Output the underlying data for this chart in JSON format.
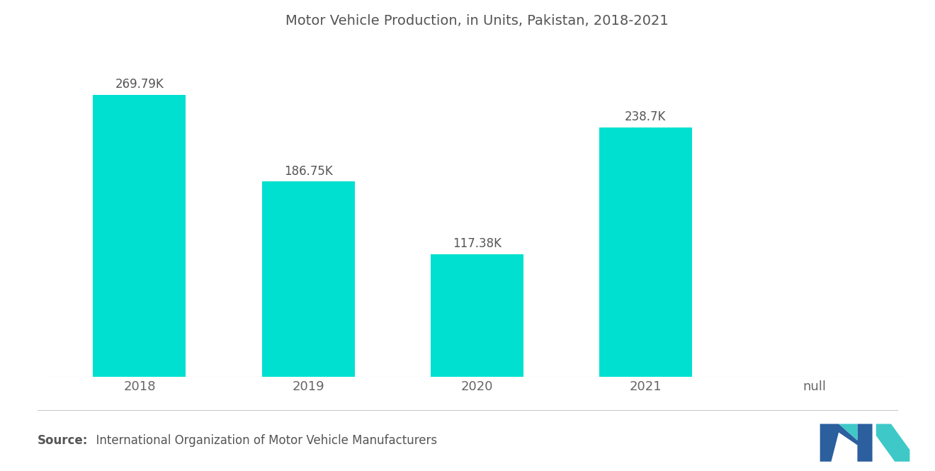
{
  "title": "Motor Vehicle Production, in Units, Pakistan, 2018-2021",
  "categories": [
    "2018",
    "2019",
    "2020",
    "2021",
    "null"
  ],
  "values": [
    269790,
    186750,
    117380,
    238700
  ],
  "labels": [
    "269.79K",
    "186.75K",
    "117.38K",
    "238.7K"
  ],
  "bar_color": "#00E0D0",
  "background_color": "#FFFFFF",
  "source_bold": "Source:",
  "source_rest": "  International Organization of Motor Vehicle Manufacturers",
  "title_fontsize": 14,
  "label_fontsize": 12,
  "tick_fontsize": 13,
  "source_fontsize": 12,
  "ylim": [
    0,
    320000
  ],
  "bar_width": 0.55,
  "x_positions": [
    0,
    1,
    2,
    3
  ],
  "xlim": [
    -0.55,
    4.55
  ],
  "title_color": "#555555",
  "tick_color": "#666666",
  "label_color": "#555555"
}
